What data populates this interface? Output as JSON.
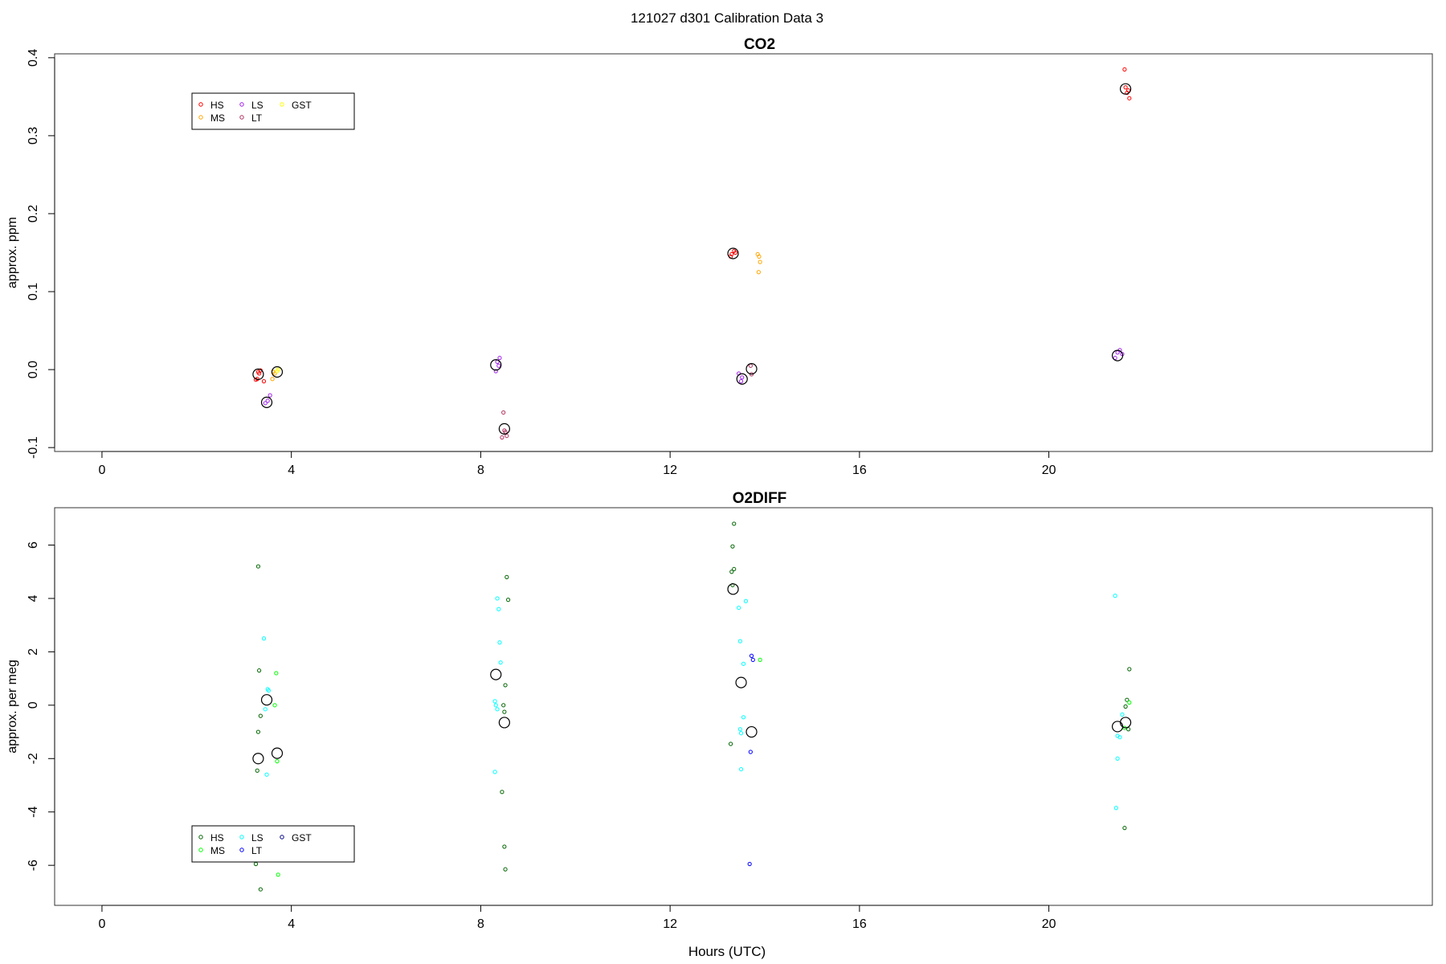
{
  "page_title": "121027   d301   Calibration Data 3",
  "xlabel": "Hours (UTC)",
  "chart_data": [
    {
      "type": "scatter",
      "title": "CO2",
      "ylabel": "approx. ppm",
      "xlim": [
        -1,
        28.1
      ],
      "ylim": [
        -0.105,
        0.405
      ],
      "xticks": [
        0,
        4,
        8,
        12,
        16,
        20
      ],
      "yticks": [
        -0.1,
        0.0,
        0.1,
        0.2,
        0.3,
        0.4
      ],
      "ytick_labels": [
        "-0.1",
        "0.0",
        "0.1",
        "0.2",
        "0.3",
        "0.4"
      ],
      "legend": {
        "placement": "top-left",
        "entries": [
          {
            "label": "HS",
            "color": "#ff0000"
          },
          {
            "label": "MS",
            "color": "#ffa500"
          },
          {
            "label": "LS",
            "color": "#a020f0"
          },
          {
            "label": "LT",
            "color": "#b03060"
          },
          {
            "label": "GST",
            "color": "#ffff00"
          }
        ]
      },
      "series": [
        {
          "color": "#ff0000",
          "points": [
            [
              3.3,
              -0.003
            ],
            [
              3.35,
              -0.001
            ],
            [
              3.28,
              -0.012
            ],
            [
              3.42,
              -0.015
            ],
            [
              3.25,
              -0.013
            ],
            [
              3.32,
              -0.005
            ],
            [
              13.3,
              0.148
            ],
            [
              13.35,
              0.152
            ],
            [
              13.28,
              0.145
            ],
            [
              13.38,
              0.15
            ],
            [
              21.6,
              0.385
            ],
            [
              21.65,
              0.355
            ],
            [
              21.7,
              0.348
            ],
            [
              21.62,
              0.362
            ],
            [
              21.68,
              0.358
            ]
          ]
        },
        {
          "color": "#b03060",
          "points": [
            [
              8.48,
              -0.055
            ],
            [
              8.5,
              -0.078
            ],
            [
              8.55,
              -0.085
            ],
            [
              8.45,
              -0.087
            ],
            [
              8.52,
              -0.08
            ],
            [
              13.7,
              0.005
            ],
            [
              13.72,
              -0.006
            ]
          ]
        },
        {
          "color": "#a020f0",
          "points": [
            [
              3.45,
              -0.043
            ],
            [
              3.55,
              -0.033
            ],
            [
              3.5,
              -0.04
            ],
            [
              8.35,
              0.01
            ],
            [
              8.4,
              0.015
            ],
            [
              8.32,
              -0.002
            ],
            [
              8.38,
              0.005
            ],
            [
              13.45,
              -0.005
            ],
            [
              13.5,
              -0.015
            ],
            [
              13.52,
              -0.01
            ],
            [
              21.45,
              0.022
            ],
            [
              21.5,
              0.025
            ],
            [
              21.4,
              0.015
            ],
            [
              21.55,
              0.02
            ]
          ]
        },
        {
          "color": "#ffa500",
          "points": [
            [
              3.6,
              -0.012
            ],
            [
              3.65,
              -0.005
            ],
            [
              3.62,
              -0.003
            ],
            [
              13.85,
              0.148
            ],
            [
              13.88,
              0.145
            ],
            [
              13.9,
              0.138
            ],
            [
              13.87,
              0.125
            ]
          ]
        },
        {
          "color": "#ffff00",
          "points": [
            [
              3.7,
              -0.002
            ],
            [
              3.72,
              0.0
            ]
          ]
        },
        {
          "color": "#000000",
          "role": "mean",
          "points": [
            [
              3.3,
              -0.006
            ],
            [
              3.7,
              -0.003
            ],
            [
              3.48,
              -0.042
            ],
            [
              8.32,
              0.006
            ],
            [
              8.5,
              -0.076
            ],
            [
              13.33,
              0.149
            ],
            [
              13.52,
              -0.012
            ],
            [
              13.72,
              0.001
            ],
            [
              21.45,
              0.018
            ],
            [
              21.62,
              0.36
            ]
          ]
        }
      ]
    },
    {
      "type": "scatter",
      "title": "O2DIFF",
      "ylabel": "approx. per meg",
      "xlim": [
        -1,
        28.1
      ],
      "ylim": [
        -7.5,
        7.4
      ],
      "xticks": [
        0,
        4,
        8,
        12,
        16,
        20
      ],
      "yticks": [
        -6,
        -4,
        -2,
        0,
        2,
        4,
        6
      ],
      "ytick_labels": [
        "-6",
        "-4",
        "-2",
        "0",
        "2",
        "4",
        "6"
      ],
      "legend": {
        "placement": "bottom-left",
        "entries": [
          {
            "label": "HS",
            "color": "#006400"
          },
          {
            "label": "MS",
            "color": "#00ff00"
          },
          {
            "label": "LS",
            "color": "#00ffff"
          },
          {
            "label": "LT",
            "color": "#0000ff"
          },
          {
            "label": "GST",
            "color": "#00008b"
          }
        ]
      },
      "series": [
        {
          "color": "#006400",
          "points": [
            [
              3.3,
              5.2
            ],
            [
              3.32,
              1.3
            ],
            [
              3.35,
              -0.4
            ],
            [
              3.3,
              -1.0
            ],
            [
              3.28,
              -2.45
            ],
            [
              3.25,
              -5.95
            ],
            [
              3.35,
              -6.9
            ],
            [
              8.45,
              -3.25
            ],
            [
              8.5,
              -5.3
            ],
            [
              8.52,
              -6.15
            ],
            [
              8.55,
              4.8
            ],
            [
              8.58,
              3.95
            ],
            [
              8.52,
              0.75
            ],
            [
              8.48,
              0.0
            ],
            [
              8.5,
              -0.25
            ],
            [
              13.35,
              6.8
            ],
            [
              13.32,
              5.95
            ],
            [
              13.35,
              5.1
            ],
            [
              13.3,
              5.0
            ],
            [
              13.32,
              4.5
            ],
            [
              13.28,
              -1.45
            ],
            [
              21.7,
              1.35
            ],
            [
              21.65,
              0.2
            ],
            [
              21.62,
              -0.05
            ],
            [
              21.6,
              -4.6
            ],
            [
              21.68,
              -0.9
            ]
          ]
        },
        {
          "color": "#00ff00",
          "points": [
            [
              3.68,
              1.2
            ],
            [
              3.65,
              0.0
            ],
            [
              3.7,
              -2.1
            ],
            [
              3.72,
              -6.35
            ],
            [
              13.9,
              1.7
            ],
            [
              21.7,
              0.1
            ],
            [
              21.6,
              -0.85
            ]
          ]
        },
        {
          "color": "#00ffff",
          "points": [
            [
              3.42,
              2.5
            ],
            [
              3.5,
              0.6
            ],
            [
              3.52,
              0.55
            ],
            [
              3.45,
              -0.15
            ],
            [
              3.48,
              -2.6
            ],
            [
              8.35,
              4.0
            ],
            [
              8.38,
              3.6
            ],
            [
              8.4,
              2.35
            ],
            [
              8.42,
              1.6
            ],
            [
              8.3,
              0.15
            ],
            [
              8.32,
              0.0
            ],
            [
              8.35,
              -0.15
            ],
            [
              8.3,
              -2.5
            ],
            [
              13.45,
              3.65
            ],
            [
              13.6,
              3.9
            ],
            [
              13.48,
              2.4
            ],
            [
              13.55,
              1.55
            ],
            [
              13.55,
              -0.45
            ],
            [
              13.48,
              -0.9
            ],
            [
              13.5,
              -1.05
            ],
            [
              13.5,
              -2.4
            ],
            [
              21.4,
              4.1
            ],
            [
              21.45,
              -2.0
            ],
            [
              21.42,
              -3.85
            ],
            [
              21.45,
              -1.15
            ],
            [
              21.5,
              -1.2
            ],
            [
              21.55,
              -0.35
            ]
          ]
        },
        {
          "color": "#0000ff",
          "points": [
            [
              13.72,
              1.85
            ],
            [
              13.75,
              1.7
            ],
            [
              13.7,
              -1.75
            ],
            [
              13.68,
              -5.95
            ]
          ]
        },
        {
          "color": "#000000",
          "role": "mean",
          "points": [
            [
              3.3,
              -2.0
            ],
            [
              3.7,
              -1.8
            ],
            [
              3.48,
              0.2
            ],
            [
              8.32,
              1.15
            ],
            [
              8.5,
              -0.65
            ],
            [
              13.33,
              4.35
            ],
            [
              13.5,
              0.85
            ],
            [
              13.72,
              -1.0
            ],
            [
              21.45,
              -0.8
            ],
            [
              21.62,
              -0.65
            ]
          ]
        }
      ]
    }
  ]
}
